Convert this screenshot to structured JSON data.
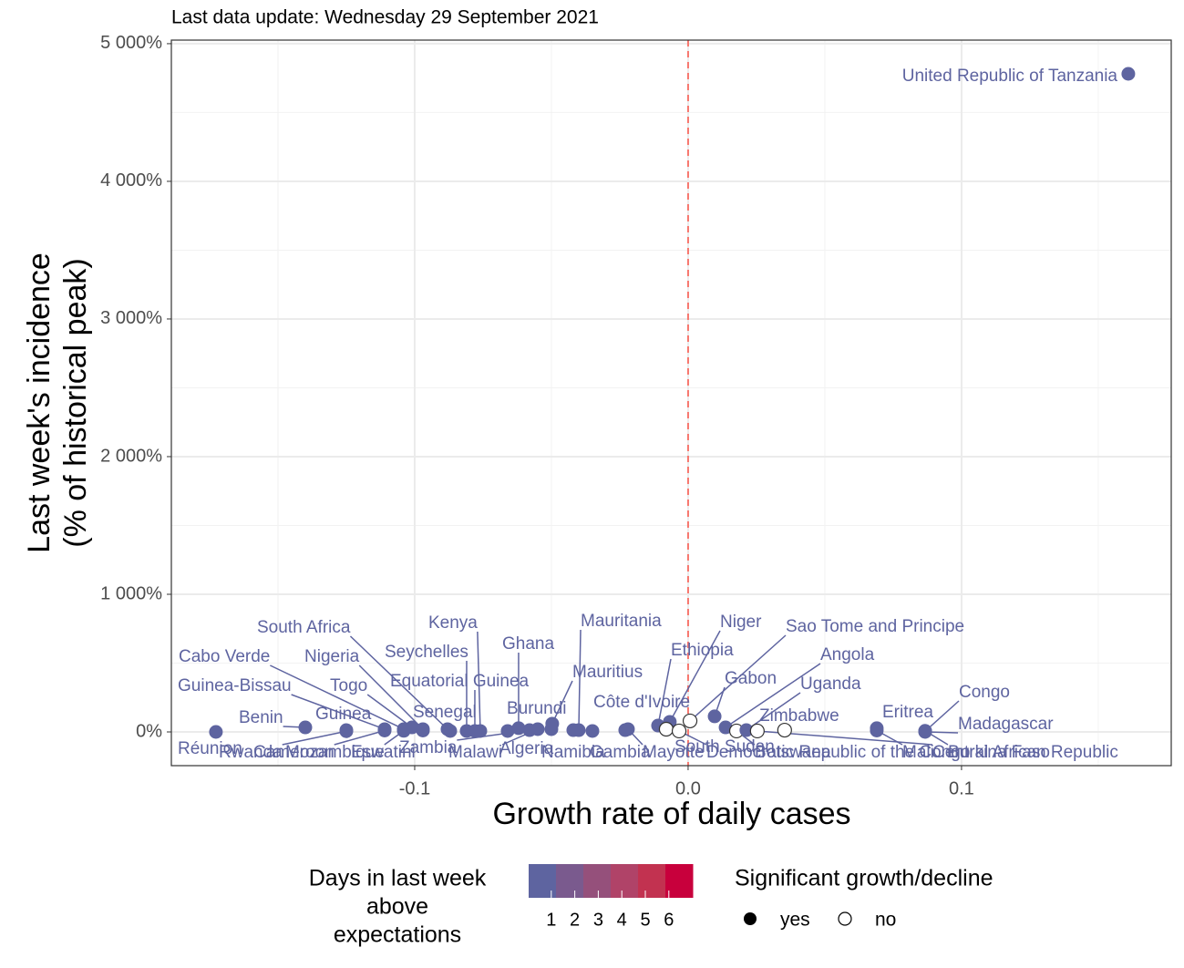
{
  "chart_data": {
    "type": "scatter",
    "subtitle": "Last data update: Wednesday 29 September 2021",
    "x_label": "Growth rate of daily cases",
    "y_label": [
      "Last week's incidence",
      "(% of historical peak)"
    ],
    "xlim": [
      -0.189,
      0.1767
    ],
    "ylim": [
      -245,
      5026
    ],
    "xticks": [
      {
        "value": -0.1,
        "label": "-0.1"
      },
      {
        "value": 0,
        "label": "0.0"
      },
      {
        "value": 0.1,
        "label": "0.1"
      }
    ],
    "yticks": [
      {
        "value": 0,
        "label": "0%"
      },
      {
        "value": 1000,
        "label": "1 000%"
      },
      {
        "value": 2000,
        "label": "2 000%"
      },
      {
        "value": 3000,
        "label": "3 000%"
      },
      {
        "value": 4000,
        "label": "4 000%"
      },
      {
        "value": 5000,
        "label": "5 000%"
      }
    ],
    "grid": true,
    "minor_grid": true,
    "vline": 0,
    "vline_color": "#f8766d",
    "points": [
      {
        "name": "Réunion",
        "x": -0.1727,
        "y": 0,
        "significant": true,
        "color": "#5e64a0"
      },
      {
        "name": "Benin",
        "x": -0.14,
        "y": 33,
        "significant": true,
        "color": "#5e64a0"
      },
      {
        "name": "Guinea",
        "x": -0.125,
        "y": 13,
        "significant": true,
        "color": "#5e64a0"
      },
      {
        "name": "Guinea-Bissau",
        "x": -0.111,
        "y": 20,
        "significant": true,
        "color": "#5e64a0"
      },
      {
        "name": "Cabo Verde",
        "x": -0.104,
        "y": 20,
        "significant": true,
        "color": "#5e64a0"
      },
      {
        "name": "Togo",
        "x": -0.101,
        "y": 33,
        "significant": true,
        "color": "#5e64a0"
      },
      {
        "name": "Nigeria",
        "x": -0.097,
        "y": 20,
        "significant": true,
        "color": "#5e64a0"
      },
      {
        "name": "South Africa",
        "x": -0.088,
        "y": 20,
        "significant": true,
        "color": "#5e64a0"
      },
      {
        "name": "Senegal",
        "x": -0.087,
        "y": 7,
        "significant": true,
        "color": "#5e64a0"
      },
      {
        "name": "Seychelles",
        "x": -0.081,
        "y": 7,
        "significant": true,
        "color": "#5e64a0"
      },
      {
        "name": "Equatorial Guinea",
        "x": -0.078,
        "y": 7,
        "significant": true,
        "color": "#5e64a0"
      },
      {
        "name": "Kenya",
        "x": -0.076,
        "y": 7,
        "significant": true,
        "color": "#5e64a0"
      },
      {
        "name": "Rwanda",
        "x": -0.125,
        "y": 5,
        "significant": true,
        "color": "#5e64a0"
      },
      {
        "name": "Cameroon",
        "x": -0.111,
        "y": 10,
        "significant": true,
        "color": "#5e64a0"
      },
      {
        "name": "Mozambique",
        "x": -0.104,
        "y": 8,
        "significant": true,
        "color": "#5e64a0"
      },
      {
        "name": "Eswatini",
        "x": -0.097,
        "y": 10,
        "significant": true,
        "color": "#5e64a0"
      },
      {
        "name": "Burundi",
        "x": -0.066,
        "y": 7,
        "significant": true,
        "color": "#5e64a0"
      },
      {
        "name": "Ghana",
        "x": -0.062,
        "y": 27,
        "significant": true,
        "color": "#5e64a0"
      },
      {
        "name": "Zambia",
        "x": -0.058,
        "y": 13,
        "significant": true,
        "color": "#5e64a0"
      },
      {
        "name": "Malawi",
        "x": -0.055,
        "y": 20,
        "significant": true,
        "color": "#5e64a0"
      },
      {
        "name": "Algeria",
        "x": -0.05,
        "y": 20,
        "significant": true,
        "color": "#5e64a0"
      },
      {
        "name": "Mauritius",
        "x": -0.0497,
        "y": 60,
        "significant": true,
        "color": "#5e64a0"
      },
      {
        "name": "Namibia",
        "x": -0.042,
        "y": 13,
        "significant": true,
        "color": "#5e64a0"
      },
      {
        "name": "Mauritania",
        "x": -0.04,
        "y": 13,
        "significant": true,
        "color": "#5e64a0"
      },
      {
        "name": "Gambia",
        "x": -0.035,
        "y": 7,
        "significant": true,
        "color": "#5e64a0"
      },
      {
        "name": "Côte d'Ivoire",
        "x": -0.023,
        "y": 13,
        "significant": true,
        "color": "#5e64a0"
      },
      {
        "name": "Mayotte",
        "x": -0.022,
        "y": 20,
        "significant": true,
        "color": "#5e64a0"
      },
      {
        "name": "Ethiopia",
        "x": -0.011,
        "y": 46,
        "significant": true,
        "color": "#5e64a0"
      },
      {
        "name": "Niger",
        "x": -0.0067,
        "y": 73,
        "significant": true,
        "color": "#5e64a0"
      },
      {
        "name": "South Sudan",
        "x": -0.008,
        "y": 20,
        "significant": false,
        "color": "#5e64a0"
      },
      {
        "name": "Democratic Republic of the Congo",
        "x": -0.0033,
        "y": 7,
        "significant": false,
        "color": "#5e64a0"
      },
      {
        "name": "Sao Tome and Principe",
        "x": 0.0007,
        "y": 80,
        "significant": false,
        "color": "#5e64a0"
      },
      {
        "name": "Gabon",
        "x": 0.0097,
        "y": 113,
        "significant": true,
        "color": "#5e64a0"
      },
      {
        "name": "Angola",
        "x": 0.0137,
        "y": 33,
        "significant": true,
        "color": "#5e64a0"
      },
      {
        "name": "Botswana",
        "x": 0.0177,
        "y": 7,
        "significant": false,
        "color": "#5e64a0"
      },
      {
        "name": "Uganda",
        "x": 0.0213,
        "y": 13,
        "significant": true,
        "color": "#5e64a0"
      },
      {
        "name": "Central African Republic",
        "x": 0.0253,
        "y": 7,
        "significant": false,
        "color": "#5e64a0"
      },
      {
        "name": "Zimbabwe",
        "x": 0.0353,
        "y": 13,
        "significant": false,
        "color": "#5e64a0"
      },
      {
        "name": "Eritrea",
        "x": 0.069,
        "y": 27,
        "significant": true,
        "color": "#5e64a0"
      },
      {
        "name": "Mali",
        "x": 0.069,
        "y": 10,
        "significant": true,
        "color": "#5e64a0"
      },
      {
        "name": "Congo",
        "x": 0.0867,
        "y": 5,
        "significant": true,
        "color": "#5e64a0"
      },
      {
        "name": "Madagascar",
        "x": 0.0867,
        "y": 0,
        "significant": true,
        "color": "#5e64a0"
      },
      {
        "name": "Burkina Faso",
        "x": 0.0867,
        "y": 8,
        "significant": true,
        "color": "#5e64a0"
      },
      {
        "name": "United Republic of Tanzania",
        "x": 0.161,
        "y": 4781,
        "significant": true,
        "color": "#5e64a0"
      }
    ],
    "color_legend": {
      "title": [
        "Days in last week",
        "above",
        "expectations"
      ],
      "ticks": [
        1,
        2,
        3,
        4,
        5,
        6
      ],
      "colors": [
        "#5e64a0",
        "#7a5a8e",
        "#95507b",
        "#b04368",
        "#c23250",
        "#c8003c"
      ]
    },
    "shape_legend": {
      "title": "Significant growth/decline",
      "entries": [
        "yes",
        "no"
      ]
    }
  }
}
